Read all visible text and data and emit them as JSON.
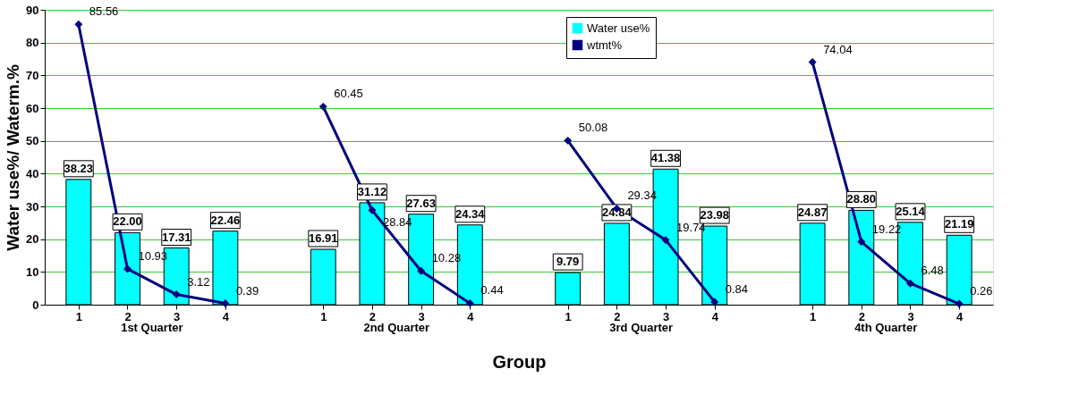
{
  "chart_data": {
    "type": "bar",
    "xlabel": "Group",
    "ylabel": "Water use%/ Waterm.%",
    "categories": [
      "1",
      "2",
      "3",
      "4",
      null,
      "1",
      "2",
      "3",
      "4",
      null,
      "1",
      "2",
      "3",
      "4",
      null,
      "1",
      "2",
      "3",
      "4"
    ],
    "annotations": [
      "1st Quarter",
      "2nd Quarter",
      "3rd Quarter",
      "4th Quarter"
    ],
    "series": [
      {
        "name": "Water use%",
        "color": "#00ffff",
        "values": [
          38.23,
          22.0,
          17.31,
          22.46,
          null,
          16.91,
          31.12,
          27.63,
          24.34,
          null,
          9.79,
          24.84,
          41.38,
          23.98,
          null,
          24.87,
          28.8,
          25.14,
          21.19
        ],
        "value_labels": [
          "38.23",
          "22.00",
          "17.31",
          "22.46",
          null,
          "16.91",
          "31.12",
          "27.63",
          "24.34",
          null,
          "9.79",
          "24.84",
          "41.38",
          "23.98",
          null,
          "24.87",
          "28.80",
          "25.14",
          "21.19"
        ]
      },
      {
        "name": "wtmt%",
        "type": "line",
        "color": "#000080",
        "marker": "diamond",
        "values": [
          85.56,
          10.93,
          3.12,
          0.39,
          null,
          60.45,
          28.84,
          10.28,
          0.44,
          null,
          50.08,
          29.34,
          19.74,
          0.84,
          null,
          74.04,
          19.22,
          6.48,
          0.26
        ],
        "value_labels": [
          "85.56",
          "10.93",
          "3.12",
          "0.39",
          null,
          "60.45",
          "28.84",
          "10.28",
          "0.44",
          null,
          "50.08",
          "29.34",
          "19.74",
          "0.84",
          null,
          "74.04",
          "19.22",
          "6.48",
          "0.26"
        ]
      }
    ],
    "ylim": [
      0,
      90
    ],
    "yticks": [
      0,
      10,
      20,
      30,
      40,
      50,
      60,
      70,
      80,
      90
    ],
    "grid": "y",
    "legend": "top"
  }
}
